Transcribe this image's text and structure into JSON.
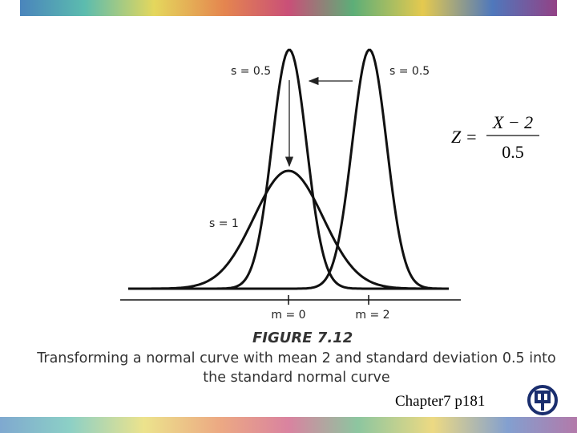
{
  "figure": {
    "labels": {
      "left_sd": "s = 0.5",
      "right_sd": "s = 0.5",
      "wide_sd": "s = 1",
      "mean_left": "m = 0",
      "mean_right": "m = 2"
    },
    "formula": {
      "lhs": "Z =",
      "numerator": "X − 2",
      "denominator": "0.5"
    },
    "caption_title": "FIGURE 7.12",
    "caption_lines": [
      "Transforming a normal curve with mean 2 and standard deviation 0.5 into",
      "the standard normal curve"
    ]
  },
  "footer": {
    "page_ref": "Chapter7 p181"
  }
}
